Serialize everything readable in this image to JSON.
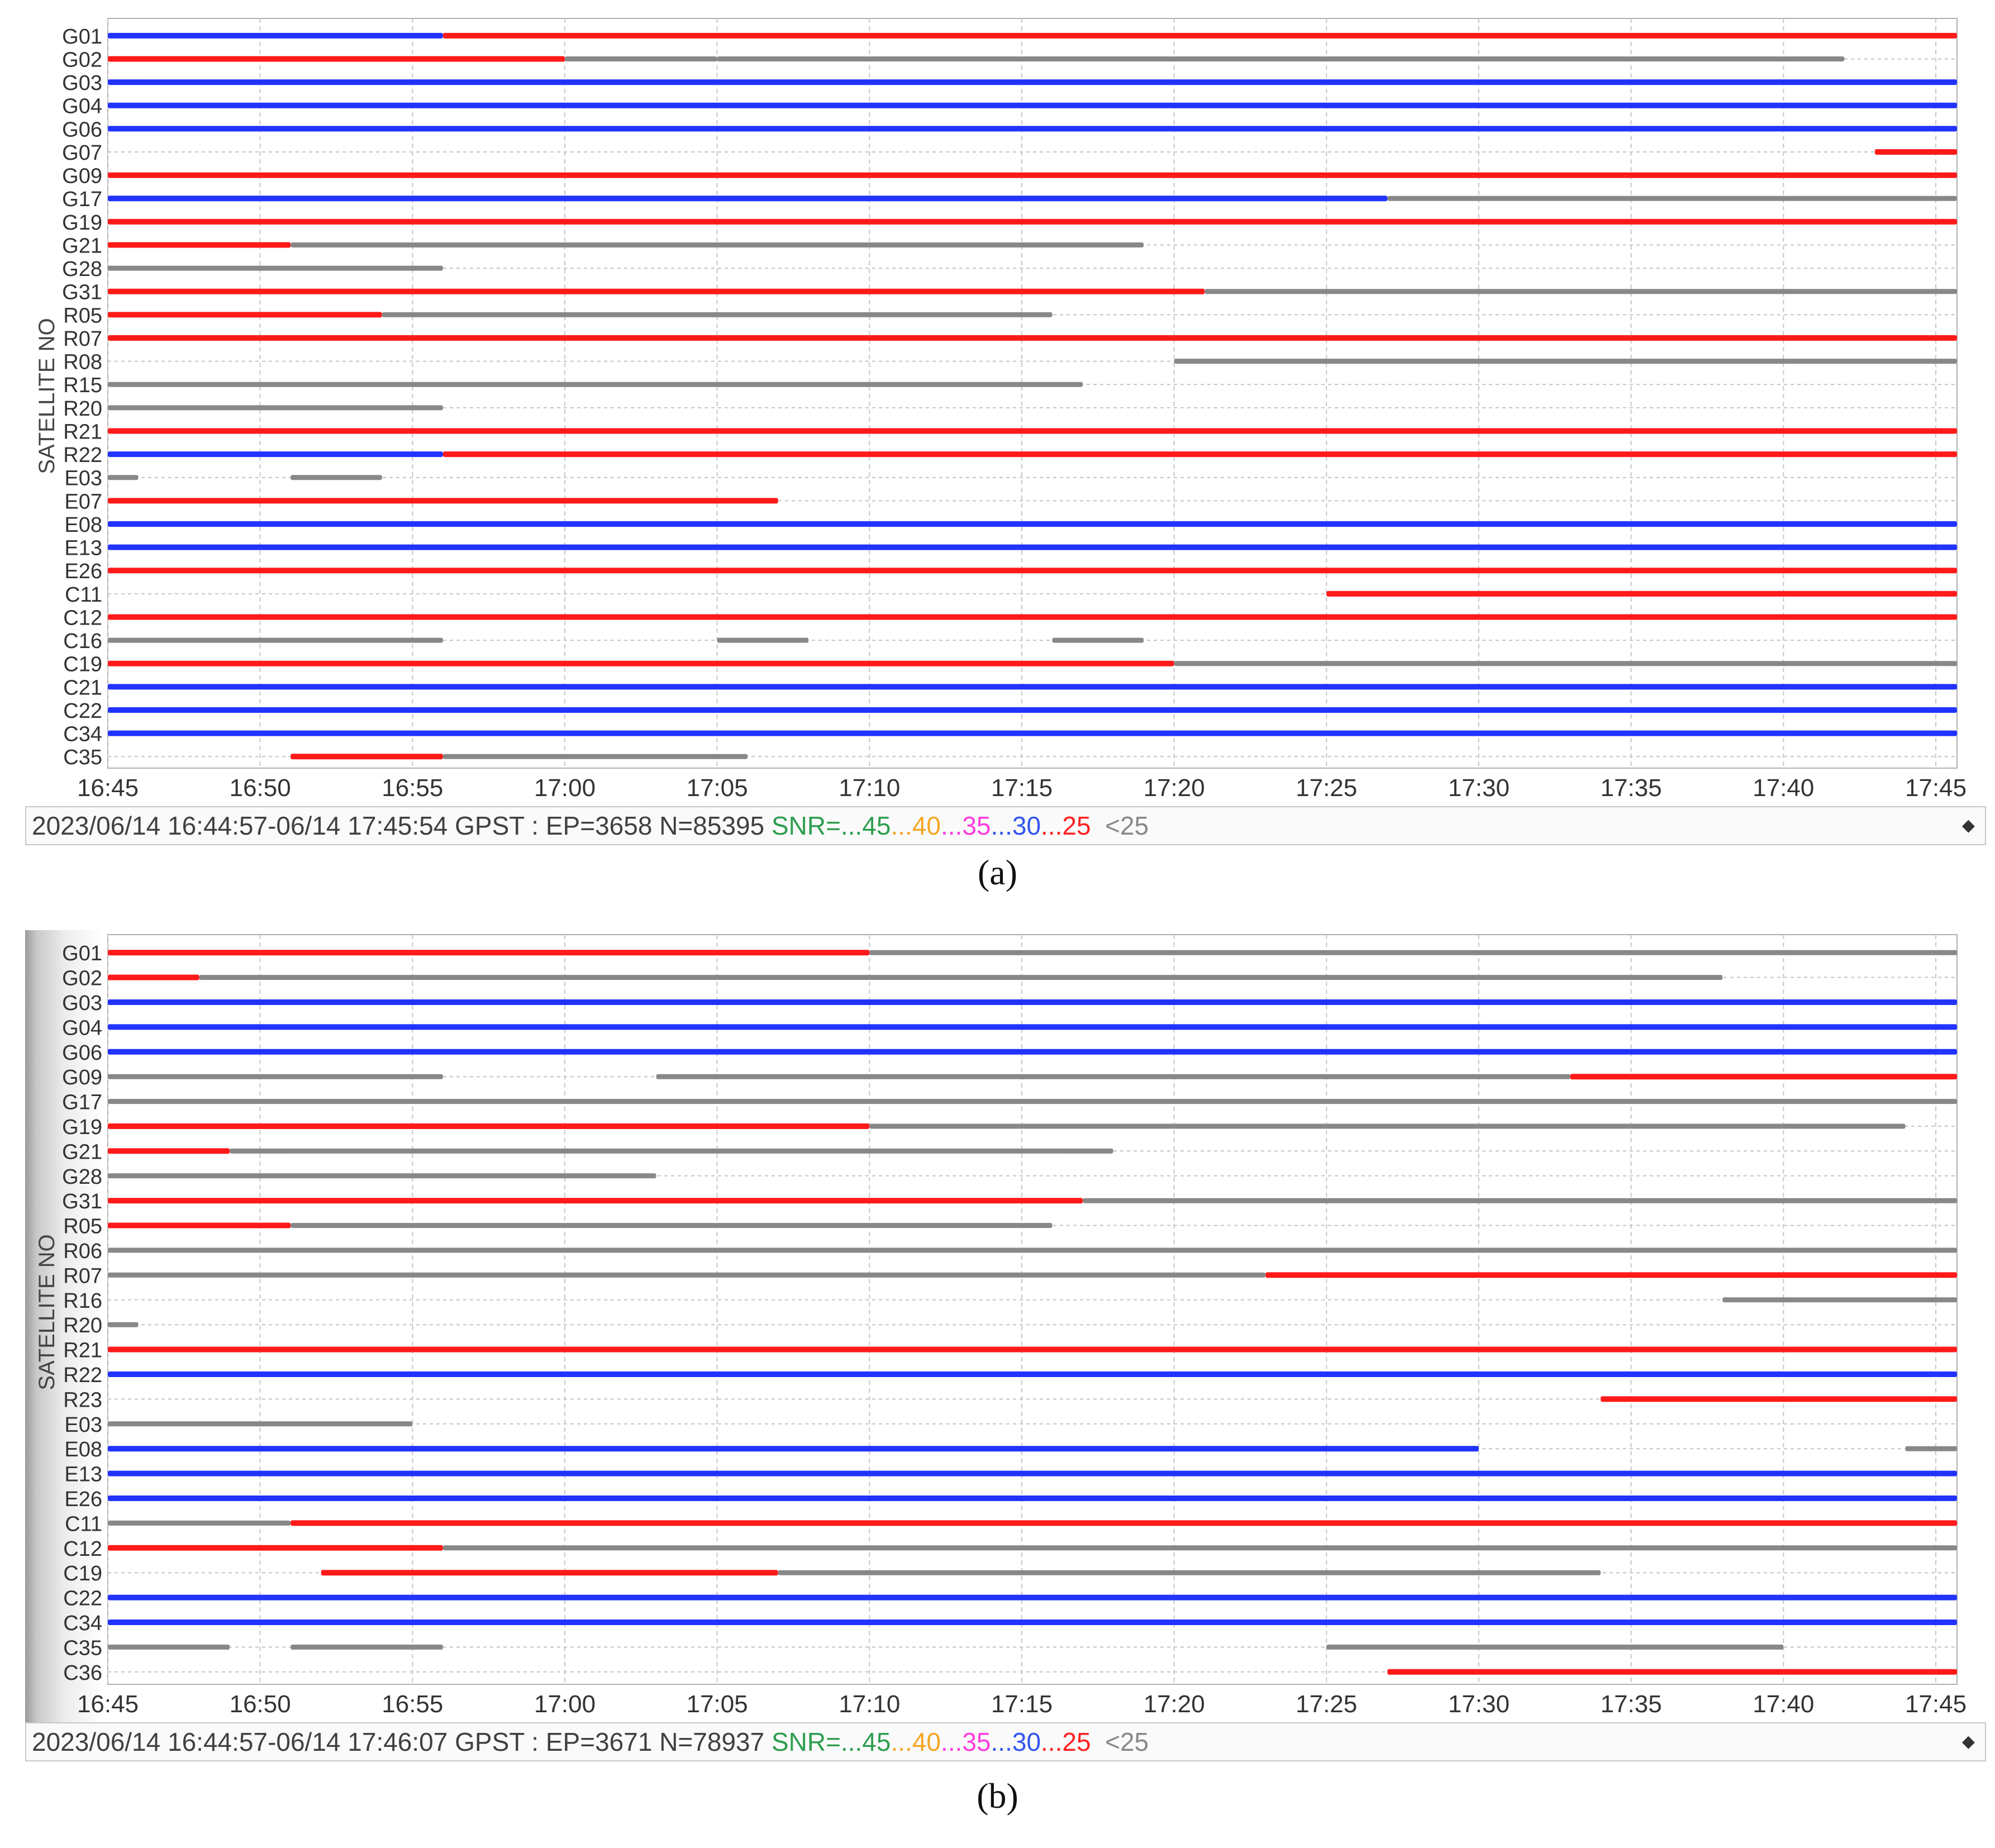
{
  "panels": [
    {
      "caption": "(a)",
      "status": {
        "prefix": "2023/06/14 16:44:57-06/14 17:45:54 GPST : EP=3658 N=85395 ",
        "snr_label": "SNR=...45",
        "s40": "...40",
        "s35": "...35",
        "s30": "...30",
        "s25": "...25",
        "s_lt25": "  <25"
      }
    },
    {
      "caption": "(b)",
      "status": {
        "prefix": "2023/06/14 16:44:57-06/14 17:46:07 GPST : EP=3671 N=78937 ",
        "snr_label": "SNR=...45",
        "s40": "...40",
        "s35": "...35",
        "s30": "...30",
        "s25": "...25",
        "s_lt25": "  <25"
      }
    }
  ],
  "chart_data": [
    {
      "type": "timeline",
      "ylabel": "SATELLITE NO",
      "xticks": [
        "16:45",
        "16:50",
        "16:55",
        "17:00",
        "17:05",
        "17:10",
        "17:15",
        "17:20",
        "17:25",
        "17:30",
        "17:35",
        "17:40",
        "17:45"
      ],
      "xlim": [
        "16:45",
        "17:46"
      ],
      "snr_colors": {
        "45": "#2e9e4f",
        "40": "#f5a623",
        "35": "#ff3ce0",
        "30": "#2233ff",
        "25": "#ff1a1a",
        "<25": "#888888"
      },
      "satellites": [
        {
          "prn": "G01",
          "segments": [
            [
              "16:45",
              "16:56",
              "30"
            ],
            [
              "16:56",
              "17:46",
              "25"
            ]
          ]
        },
        {
          "prn": "G02",
          "segments": [
            [
              "16:45",
              "17:00",
              "25"
            ],
            [
              "17:00",
              "17:05",
              "<25"
            ],
            [
              "17:05",
              "17:42",
              "<25"
            ]
          ]
        },
        {
          "prn": "G03",
          "segments": [
            [
              "16:45",
              "17:46",
              "30"
            ]
          ]
        },
        {
          "prn": "G04",
          "segments": [
            [
              "16:45",
              "17:46",
              "30"
            ]
          ]
        },
        {
          "prn": "G06",
          "segments": [
            [
              "16:45",
              "17:46",
              "30"
            ]
          ]
        },
        {
          "prn": "G07",
          "segments": [
            [
              "17:43",
              "17:46",
              "25"
            ]
          ]
        },
        {
          "prn": "G09",
          "segments": [
            [
              "16:45",
              "17:46",
              "25"
            ]
          ]
        },
        {
          "prn": "G17",
          "segments": [
            [
              "16:45",
              "17:27",
              "30"
            ],
            [
              "17:27",
              "17:46",
              "<25"
            ]
          ]
        },
        {
          "prn": "G19",
          "segments": [
            [
              "16:45",
              "17:46",
              "25"
            ]
          ]
        },
        {
          "prn": "G21",
          "segments": [
            [
              "16:45",
              "16:51",
              "25"
            ],
            [
              "16:51",
              "17:19",
              "<25"
            ]
          ]
        },
        {
          "prn": "G28",
          "segments": [
            [
              "16:45",
              "16:56",
              "<25"
            ]
          ]
        },
        {
          "prn": "G31",
          "segments": [
            [
              "16:45",
              "17:21",
              "25"
            ],
            [
              "17:21",
              "17:46",
              "<25"
            ]
          ]
        },
        {
          "prn": "R05",
          "segments": [
            [
              "16:45",
              "16:54",
              "25"
            ],
            [
              "16:54",
              "17:16",
              "<25"
            ]
          ]
        },
        {
          "prn": "R07",
          "segments": [
            [
              "16:45",
              "17:46",
              "25"
            ]
          ]
        },
        {
          "prn": "R08",
          "segments": [
            [
              "17:20",
              "17:46",
              "<25"
            ]
          ]
        },
        {
          "prn": "R15",
          "segments": [
            [
              "16:45",
              "17:17",
              "<25"
            ]
          ]
        },
        {
          "prn": "R20",
          "segments": [
            [
              "16:45",
              "16:56",
              "<25"
            ]
          ]
        },
        {
          "prn": "R21",
          "segments": [
            [
              "16:45",
              "17:46",
              "25"
            ]
          ]
        },
        {
          "prn": "R22",
          "segments": [
            [
              "16:45",
              "16:56",
              "30"
            ],
            [
              "16:56",
              "17:46",
              "25"
            ]
          ]
        },
        {
          "prn": "E03",
          "segments": [
            [
              "16:45",
              "16:46",
              "<25"
            ],
            [
              "16:51",
              "16:54",
              "<25"
            ]
          ]
        },
        {
          "prn": "E07",
          "segments": [
            [
              "16:45",
              "17:07",
              "25"
            ]
          ]
        },
        {
          "prn": "E08",
          "segments": [
            [
              "16:45",
              "17:46",
              "30"
            ]
          ]
        },
        {
          "prn": "E13",
          "segments": [
            [
              "16:45",
              "17:46",
              "30"
            ]
          ]
        },
        {
          "prn": "E26",
          "segments": [
            [
              "16:45",
              "17:46",
              "25"
            ]
          ]
        },
        {
          "prn": "C11",
          "segments": [
            [
              "17:25",
              "17:46",
              "25"
            ]
          ]
        },
        {
          "prn": "C12",
          "segments": [
            [
              "16:45",
              "17:46",
              "25"
            ]
          ]
        },
        {
          "prn": "C16",
          "segments": [
            [
              "16:45",
              "16:56",
              "<25"
            ],
            [
              "17:05",
              "17:08",
              "<25"
            ],
            [
              "17:16",
              "17:19",
              "<25"
            ]
          ]
        },
        {
          "prn": "C19",
          "segments": [
            [
              "16:45",
              "17:20",
              "25"
            ],
            [
              "17:20",
              "17:46",
              "<25"
            ]
          ]
        },
        {
          "prn": "C21",
          "segments": [
            [
              "16:45",
              "17:46",
              "30"
            ]
          ]
        },
        {
          "prn": "C22",
          "segments": [
            [
              "16:45",
              "17:46",
              "30"
            ]
          ]
        },
        {
          "prn": "C34",
          "segments": [
            [
              "16:45",
              "17:46",
              "30"
            ]
          ]
        },
        {
          "prn": "C35",
          "segments": [
            [
              "16:51",
              "16:56",
              "25"
            ],
            [
              "16:56",
              "17:06",
              "<25"
            ]
          ]
        }
      ]
    },
    {
      "type": "timeline",
      "ylabel": "SATELLITE NO",
      "xticks": [
        "16:45",
        "16:50",
        "16:55",
        "17:00",
        "17:05",
        "17:10",
        "17:15",
        "17:20",
        "17:25",
        "17:30",
        "17:35",
        "17:40",
        "17:45"
      ],
      "xlim": [
        "16:45",
        "17:46"
      ],
      "snr_colors": {
        "45": "#2e9e4f",
        "40": "#f5a623",
        "35": "#ff3ce0",
        "30": "#2233ff",
        "25": "#ff1a1a",
        "<25": "#888888"
      },
      "satellites": [
        {
          "prn": "G01",
          "segments": [
            [
              "16:45",
              "17:10",
              "25"
            ],
            [
              "17:10",
              "17:46",
              "<25"
            ]
          ]
        },
        {
          "prn": "G02",
          "segments": [
            [
              "16:45",
              "16:48",
              "25"
            ],
            [
              "16:48",
              "17:38",
              "<25"
            ]
          ]
        },
        {
          "prn": "G03",
          "segments": [
            [
              "16:45",
              "17:46",
              "30"
            ]
          ]
        },
        {
          "prn": "G04",
          "segments": [
            [
              "16:45",
              "17:46",
              "30"
            ]
          ]
        },
        {
          "prn": "G06",
          "segments": [
            [
              "16:45",
              "17:46",
              "30"
            ]
          ]
        },
        {
          "prn": "G09",
          "segments": [
            [
              "16:45",
              "16:56",
              "<25"
            ],
            [
              "17:03",
              "17:33",
              "<25"
            ],
            [
              "17:33",
              "17:46",
              "25"
            ]
          ]
        },
        {
          "prn": "G17",
          "segments": [
            [
              "16:45",
              "17:46",
              "<25"
            ]
          ]
        },
        {
          "prn": "G19",
          "segments": [
            [
              "16:45",
              "17:10",
              "25"
            ],
            [
              "17:10",
              "17:44",
              "<25"
            ]
          ]
        },
        {
          "prn": "G21",
          "segments": [
            [
              "16:45",
              "16:49",
              "25"
            ],
            [
              "16:49",
              "17:18",
              "<25"
            ]
          ]
        },
        {
          "prn": "G28",
          "segments": [
            [
              "16:45",
              "17:03",
              "<25"
            ]
          ]
        },
        {
          "prn": "G31",
          "segments": [
            [
              "16:45",
              "17:17",
              "25"
            ],
            [
              "17:17",
              "17:46",
              "<25"
            ]
          ]
        },
        {
          "prn": "R05",
          "segments": [
            [
              "16:45",
              "16:51",
              "25"
            ],
            [
              "16:51",
              "17:16",
              "<25"
            ]
          ]
        },
        {
          "prn": "R06",
          "segments": [
            [
              "16:45",
              "17:46",
              "<25"
            ]
          ]
        },
        {
          "prn": "R07",
          "segments": [
            [
              "16:45",
              "17:23",
              "<25"
            ],
            [
              "17:23",
              "17:46",
              "25"
            ]
          ]
        },
        {
          "prn": "R16",
          "segments": [
            [
              "17:38",
              "17:46",
              "<25"
            ]
          ]
        },
        {
          "prn": "R20",
          "segments": [
            [
              "16:45",
              "16:46",
              "<25"
            ]
          ]
        },
        {
          "prn": "R21",
          "segments": [
            [
              "16:45",
              "17:46",
              "25"
            ]
          ]
        },
        {
          "prn": "R22",
          "segments": [
            [
              "16:45",
              "17:46",
              "30"
            ]
          ]
        },
        {
          "prn": "R23",
          "segments": [
            [
              "17:34",
              "17:46",
              "25"
            ]
          ]
        },
        {
          "prn": "E03",
          "segments": [
            [
              "16:45",
              "16:55",
              "<25"
            ]
          ]
        },
        {
          "prn": "E08",
          "segments": [
            [
              "16:45",
              "17:30",
              "30"
            ],
            [
              "17:44",
              "17:46",
              "<25"
            ]
          ]
        },
        {
          "prn": "E13",
          "segments": [
            [
              "16:45",
              "17:46",
              "30"
            ]
          ]
        },
        {
          "prn": "E26",
          "segments": [
            [
              "16:45",
              "17:46",
              "30"
            ]
          ]
        },
        {
          "prn": "C11",
          "segments": [
            [
              "16:45",
              "16:51",
              "<25"
            ],
            [
              "16:51",
              "17:46",
              "25"
            ]
          ]
        },
        {
          "prn": "C12",
          "segments": [
            [
              "16:45",
              "16:56",
              "25"
            ],
            [
              "16:56",
              "17:46",
              "<25"
            ]
          ]
        },
        {
          "prn": "C19",
          "segments": [
            [
              "16:52",
              "17:07",
              "25"
            ],
            [
              "17:07",
              "17:34",
              "<25"
            ]
          ]
        },
        {
          "prn": "C22",
          "segments": [
            [
              "16:45",
              "17:46",
              "30"
            ]
          ]
        },
        {
          "prn": "C34",
          "segments": [
            [
              "16:45",
              "17:46",
              "30"
            ]
          ]
        },
        {
          "prn": "C35",
          "segments": [
            [
              "16:45",
              "16:49",
              "<25"
            ],
            [
              "16:51",
              "16:56",
              "<25"
            ],
            [
              "17:25",
              "17:40",
              "<25"
            ]
          ]
        },
        {
          "prn": "C36",
          "segments": [
            [
              "17:27",
              "17:46",
              "25"
            ]
          ]
        }
      ]
    }
  ]
}
